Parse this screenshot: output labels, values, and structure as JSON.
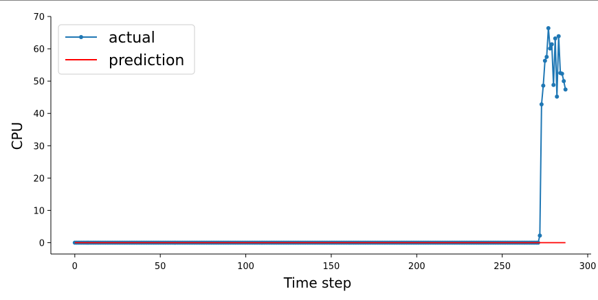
{
  "chart_data": {
    "type": "line",
    "title": "",
    "xlabel": "Time step",
    "ylabel": "CPU",
    "xlim": [
      -14,
      302
    ],
    "ylim": [
      -3.5,
      70
    ],
    "xticks": [
      0,
      50,
      100,
      150,
      200,
      250,
      300
    ],
    "yticks": [
      0,
      10,
      20,
      30,
      40,
      50,
      60,
      70
    ],
    "grid": false,
    "legend": "top-left",
    "series": [
      {
        "name": "actual",
        "color": "#1f77b4",
        "marker": "circle",
        "segments": [
          {
            "x_start": 0,
            "x_end": 271,
            "value": 0
          }
        ],
        "points": [
          [
            271,
            0
          ],
          [
            272,
            2.2
          ],
          [
            273,
            42.8
          ],
          [
            274,
            48.6
          ],
          [
            275,
            56.3
          ],
          [
            276,
            57.5
          ],
          [
            277,
            66.4
          ],
          [
            278,
            60.1
          ],
          [
            279,
            61.4
          ],
          [
            280,
            48.8
          ],
          [
            281,
            63.2
          ],
          [
            282,
            45.2
          ],
          [
            283,
            63.9
          ],
          [
            284,
            52.5
          ],
          [
            285,
            52.3
          ],
          [
            286,
            50.0
          ],
          [
            287,
            47.4
          ]
        ]
      },
      {
        "name": "prediction",
        "color": "#ff0000",
        "marker": "none",
        "points": [
          [
            0,
            0
          ],
          [
            287,
            0
          ]
        ]
      }
    ]
  }
}
